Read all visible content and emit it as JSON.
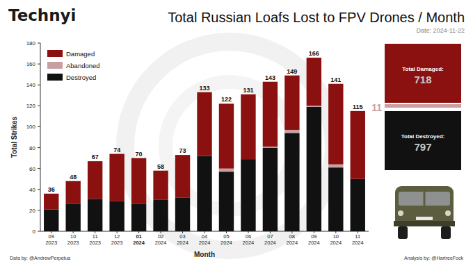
{
  "chart_data": {
    "type": "bar",
    "stacked": true,
    "brand": "Technyi",
    "title": "Total Russian Loafs Lost to FPV Drones / Month",
    "subtitle": "Date: 2024-11-22",
    "x_label": "Month",
    "y_label": "Total Strikes",
    "categories": [
      "09 2023",
      "10 2023",
      "11 2023",
      "12 2023",
      "01 2024",
      "02 2024",
      "03 2024",
      "04 2024",
      "05 2024",
      "06 2024",
      "07 2024",
      "08 2024",
      "09 2024",
      "10 2024",
      "11 2024"
    ],
    "series": [
      {
        "name": "Damaged",
        "color": "#8b1010",
        "values": [
          15,
          22,
          36,
          45,
          44,
          28,
          41,
          61,
          62,
          62,
          62,
          52,
          46,
          77,
          65
        ]
      },
      {
        "name": "Abandoned",
        "color": "#c9a0a2",
        "values": [
          0,
          0,
          0,
          0,
          0,
          0,
          0,
          0,
          3,
          0,
          1,
          3,
          1,
          3,
          0
        ]
      },
      {
        "name": "Destroyed",
        "color": "#111111",
        "values": [
          21,
          26,
          31,
          29,
          26,
          30,
          32,
          72,
          57,
          69,
          80,
          94,
          119,
          61,
          50
        ]
      }
    ],
    "totals": [
      36,
      48,
      67,
      74,
      70,
      58,
      73,
      133,
      122,
      131,
      143,
      149,
      166,
      141,
      115
    ],
    "ylim": [
      0,
      180
    ],
    "yticks": [
      0,
      20,
      40,
      60,
      80,
      100,
      120,
      140,
      160,
      180
    ],
    "legend": "upper left",
    "summary": [
      {
        "label": "Total Damaged:",
        "value": 718
      },
      {
        "value": 11
      },
      {
        "label": "Total Destroyed:",
        "value": 797
      }
    ],
    "footer": [
      "Data by: @AndrewPerpetua",
      "Analysis by: @HartreeFock"
    ]
  }
}
